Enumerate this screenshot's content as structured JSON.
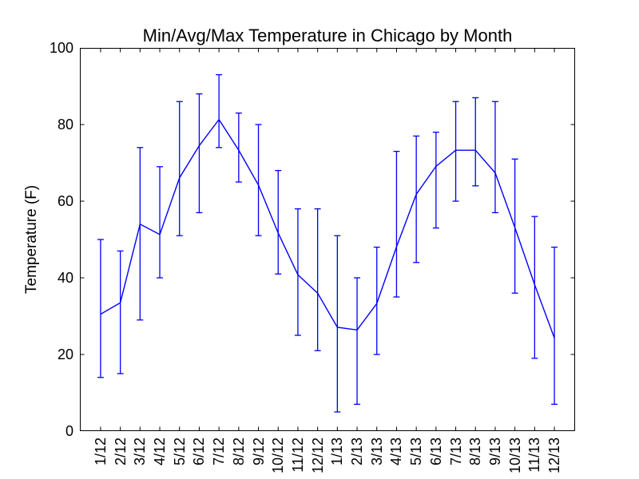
{
  "chart_data": {
    "type": "line",
    "subtype": "errorbar",
    "title": "Min/Avg/Max Temperature in Chicago by Month",
    "xlabel": "",
    "ylabel": "Temperature (F)",
    "categories": [
      "1/12",
      "2/12",
      "3/12",
      "4/12",
      "5/12",
      "6/12",
      "7/12",
      "8/12",
      "9/12",
      "10/12",
      "11/12",
      "12/12",
      "1/13",
      "2/13",
      "3/13",
      "4/13",
      "5/13",
      "6/13",
      "7/13",
      "8/13",
      "9/13",
      "10/13",
      "11/13",
      "12/13"
    ],
    "series": [
      {
        "name": "avg",
        "role": "center-line",
        "values": [
          30.5,
          33.5,
          54.0,
          51.3,
          66.1,
          74.5,
          81.3,
          73.3,
          64.2,
          51.7,
          40.8,
          36.0,
          27.1,
          26.4,
          33.3,
          48.1,
          61.8,
          69.1,
          73.3,
          73.3,
          67.4,
          53.1,
          38.2,
          24.3
        ]
      },
      {
        "name": "min",
        "role": "errorbar-lower",
        "values": [
          14,
          15,
          29,
          40,
          51,
          57,
          74,
          65,
          51,
          41,
          25,
          21,
          5,
          7,
          20,
          35,
          44,
          53,
          60,
          64,
          57,
          36,
          19,
          7
        ]
      },
      {
        "name": "max",
        "role": "errorbar-upper",
        "values": [
          50,
          47,
          74,
          69,
          86,
          88,
          93,
          83,
          80,
          68,
          58,
          58,
          51,
          40,
          48,
          73,
          77,
          78,
          86,
          87,
          86,
          71,
          56,
          48
        ]
      }
    ],
    "ylim": [
      0,
      100
    ],
    "xlim": [
      -1.05,
      24.05
    ],
    "yticks": [
      0,
      20,
      40,
      60,
      80,
      100
    ],
    "grid": false,
    "legend": "none",
    "marker": "none",
    "tick_direction": "in",
    "errorbar_capsize_px": 4,
    "line_color": "#0000ff",
    "axis_color": "#000000",
    "background": "#ffffff"
  }
}
